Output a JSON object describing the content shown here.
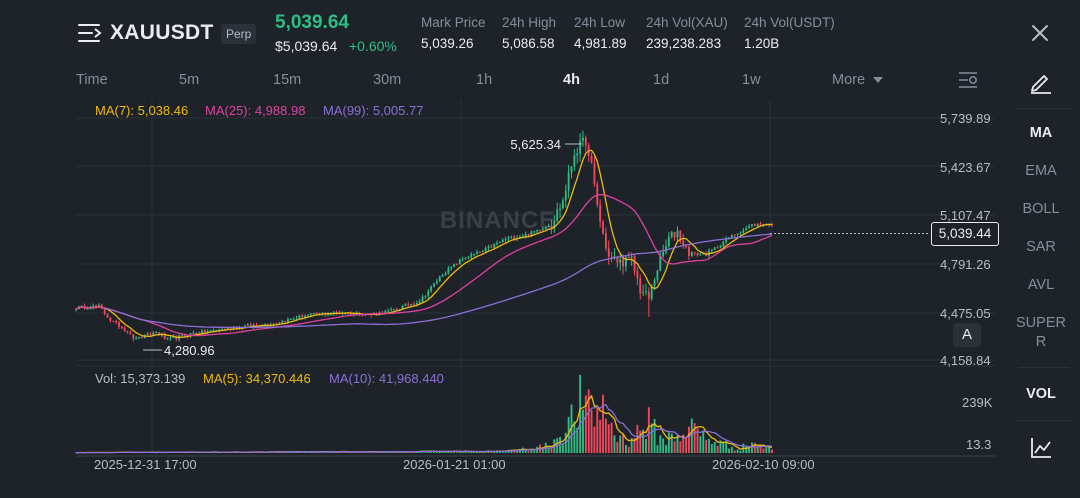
{
  "header": {
    "symbol": "XAUUSDT",
    "badge": "Perp",
    "last_price": "5,039.64",
    "last_price_usd": "$5,039.64",
    "change_pct": "+0.60%",
    "stats": [
      {
        "label": "Mark Price",
        "value": "5,039.26"
      },
      {
        "label": "24h High",
        "value": "5,086.58"
      },
      {
        "label": "24h Low",
        "value": "4,981.89"
      },
      {
        "label": "24h Vol(XAU)",
        "value": "239,238.283"
      },
      {
        "label": "24h Vol(USDT)",
        "value": "1.20B"
      }
    ]
  },
  "intervals": {
    "items": [
      "Time",
      "5m",
      "15m",
      "30m",
      "1h",
      "4h",
      "1d",
      "1w",
      "More"
    ],
    "active": "4h"
  },
  "side_panel": {
    "indicators": [
      "MA",
      "EMA",
      "BOLL",
      "SAR",
      "AVL",
      "SUPER"
    ],
    "super_suffix": "R",
    "active": "MA",
    "volume": "VOL"
  },
  "legend": {
    "ma7": "MA(7): 5,038.46",
    "ma25": "MA(25): 4,988.98",
    "ma99": "MA(99): 5,005.77",
    "vol": "Vol: 15,373.139",
    "vol_ma5": "MA(5): 34,370.446",
    "vol_ma10": "MA(10): 41,968.440"
  },
  "watermark": "BINANCE",
  "price_axis": [
    "5,739.89",
    "5,423.67",
    "5,107.47",
    "4,791.26",
    "4,475.05",
    "4,158.84"
  ],
  "current_price_tag": "5,039.44",
  "volume_axis": [
    "239K",
    "13.3"
  ],
  "time_axis": [
    "2025-12-31 17:00",
    "2026-01-21 01:00",
    "2026-02-10 09:00"
  ],
  "annotations": {
    "high": "5,625.34",
    "low": "4,280.96"
  },
  "auto_button": "A",
  "colors": {
    "up": "#2ebd85",
    "down": "#f6465d",
    "ma7": "#f0b90b",
    "ma25": "#e040a0",
    "ma99": "#8a6fd6",
    "background": "#1e2329"
  },
  "chart_data": {
    "type": "candlestick",
    "price_range": [
      4158.84,
      5739.89
    ],
    "anchors": [
      {
        "i": 0,
        "p": 4500
      },
      {
        "i": 8,
        "p": 4510
      },
      {
        "i": 12,
        "p": 4420
      },
      {
        "i": 18,
        "p": 4345
      },
      {
        "i": 22,
        "p": 4300
      },
      {
        "i": 28,
        "p": 4340
      },
      {
        "i": 32,
        "p": 4290
      },
      {
        "i": 40,
        "p": 4330
      },
      {
        "i": 55,
        "p": 4370
      },
      {
        "i": 70,
        "p": 4400
      },
      {
        "i": 80,
        "p": 4450
      },
      {
        "i": 92,
        "p": 4470
      },
      {
        "i": 103,
        "p": 4455
      },
      {
        "i": 110,
        "p": 4480
      },
      {
        "i": 120,
        "p": 4545
      },
      {
        "i": 128,
        "p": 4720
      },
      {
        "i": 135,
        "p": 4820
      },
      {
        "i": 142,
        "p": 4870
      },
      {
        "i": 150,
        "p": 4950
      },
      {
        "i": 158,
        "p": 4980
      },
      {
        "i": 166,
        "p": 5050
      },
      {
        "i": 170,
        "p": 5200
      },
      {
        "i": 174,
        "p": 5510
      },
      {
        "i": 177,
        "p": 5580
      },
      {
        "i": 180,
        "p": 5420
      },
      {
        "i": 183,
        "p": 5060
      },
      {
        "i": 186,
        "p": 4830
      },
      {
        "i": 190,
        "p": 4800
      },
      {
        "i": 194,
        "p": 4810
      },
      {
        "i": 197,
        "p": 4620
      },
      {
        "i": 200,
        "p": 4560
      },
      {
        "i": 203,
        "p": 4760
      },
      {
        "i": 207,
        "p": 4950
      },
      {
        "i": 210,
        "p": 5000
      },
      {
        "i": 213,
        "p": 4880
      },
      {
        "i": 216,
        "p": 4850
      },
      {
        "i": 220,
        "p": 4850
      },
      {
        "i": 224,
        "p": 4900
      },
      {
        "i": 228,
        "p": 4960
      },
      {
        "i": 232,
        "p": 5000
      },
      {
        "i": 236,
        "p": 5040
      },
      {
        "i": 240,
        "p": 5050
      },
      {
        "i": 243,
        "p": 5039.44
      }
    ],
    "volume_range": [
      0,
      240000
    ],
    "volume_anchors": [
      {
        "i": 0,
        "v": 2000
      },
      {
        "i": 150,
        "v": 8000
      },
      {
        "i": 165,
        "v": 30000
      },
      {
        "i": 172,
        "v": 120000
      },
      {
        "i": 176,
        "v": 220000
      },
      {
        "i": 180,
        "v": 160000
      },
      {
        "i": 184,
        "v": 200000
      },
      {
        "i": 188,
        "v": 90000
      },
      {
        "i": 192,
        "v": 50000
      },
      {
        "i": 196,
        "v": 90000
      },
      {
        "i": 200,
        "v": 130000
      },
      {
        "i": 204,
        "v": 60000
      },
      {
        "i": 208,
        "v": 70000
      },
      {
        "i": 212,
        "v": 90000
      },
      {
        "i": 216,
        "v": 110000
      },
      {
        "i": 220,
        "v": 60000
      },
      {
        "i": 224,
        "v": 50000
      },
      {
        "i": 228,
        "v": 30000
      },
      {
        "i": 232,
        "v": 20000
      },
      {
        "i": 236,
        "v": 45000
      },
      {
        "i": 240,
        "v": 25000
      },
      {
        "i": 243,
        "v": 15373
      }
    ],
    "high_label": "5,625.34",
    "low_label": "4,280.96"
  }
}
